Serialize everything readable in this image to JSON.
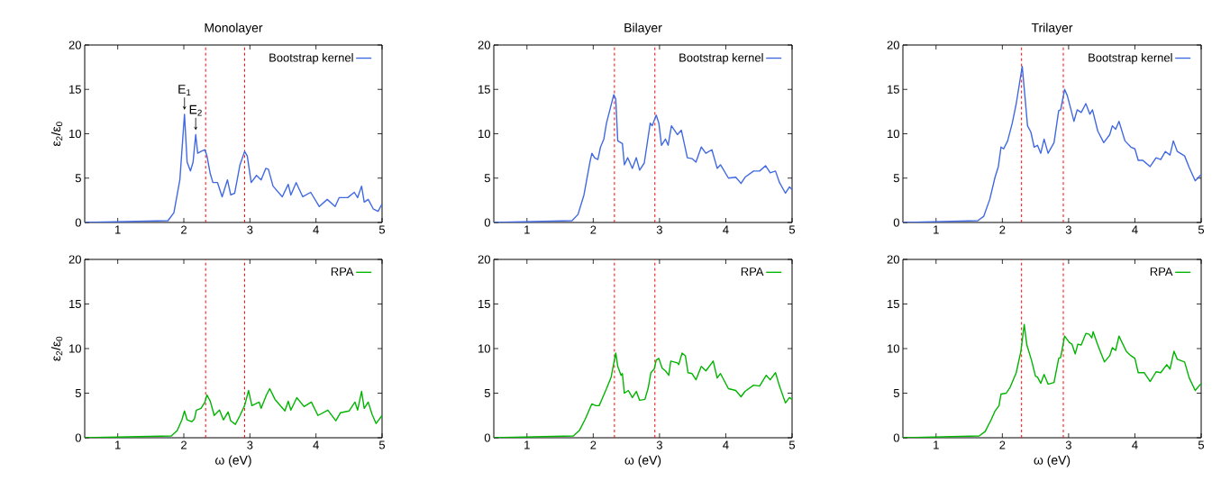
{
  "chart_data": [
    {
      "type": "line",
      "title": "Monolayer",
      "ylabel": "ε$_{2}$/ε$_{0}$",
      "xlim": [
        0.5,
        5
      ],
      "xticks": [
        1,
        2,
        3,
        4,
        5
      ],
      "ylim": [
        0,
        20
      ],
      "yticks": [
        0,
        5,
        10,
        15,
        20
      ],
      "legend": "top right",
      "marker": "none",
      "ref_lines": [
        {
          "axis": "x",
          "value": 2.33,
          "color": "#ff0000",
          "line_style": "dashed"
        },
        {
          "axis": "x",
          "value": 2.92,
          "color": "#ff0000",
          "line_style": "dashed"
        }
      ],
      "annotations": [
        {
          "text": "E$_{1}$",
          "x": 2.01,
          "y": 12.2
        },
        {
          "text": "E$_{2}$",
          "x": 2.18,
          "y": 9.9
        }
      ],
      "series": [
        {
          "name": "Bootstrap kernel",
          "color": "#4169e1",
          "x": [
            0.5,
            1.76,
            1.85,
            1.94,
            2.01,
            2.05,
            2.1,
            2.14,
            2.18,
            2.21,
            2.26,
            2.32,
            2.35,
            2.4,
            2.44,
            2.51,
            2.58,
            2.66,
            2.71,
            2.77,
            2.85,
            2.92,
            2.96,
            3.02,
            3.1,
            3.17,
            3.24,
            3.28,
            3.35,
            3.49,
            3.58,
            3.62,
            3.7,
            3.8,
            3.92,
            4.05,
            4.17,
            4.29,
            4.35,
            4.48,
            4.58,
            4.63,
            4.69,
            4.73,
            4.79,
            4.87,
            4.94,
            5.0
          ],
          "values": [
            0,
            0.2,
            1.1,
            4.8,
            12.2,
            6.8,
            5.8,
            6.8,
            9.9,
            7.8,
            8.0,
            8.2,
            7.5,
            5.5,
            4.5,
            4.5,
            2.9,
            4.8,
            3.1,
            3.3,
            6.5,
            8.0,
            7.5,
            4.5,
            5.3,
            4.8,
            6.1,
            6.0,
            4.1,
            2.9,
            4.3,
            3.1,
            4.5,
            2.9,
            3.4,
            1.8,
            2.6,
            1.8,
            2.8,
            2.8,
            3.4,
            2.8,
            4.1,
            2.3,
            2.6,
            1.5,
            1.25,
            2.1
          ]
        }
      ]
    },
    {
      "type": "line",
      "title": "Bilayer",
      "xlim": [
        0.5,
        5
      ],
      "xticks": [
        1,
        2,
        3,
        4,
        5
      ],
      "ylim": [
        0,
        20
      ],
      "yticks": [
        0,
        5,
        10,
        15,
        20
      ],
      "legend": "top right",
      "marker": "none",
      "ref_lines": [
        {
          "axis": "x",
          "value": 2.32,
          "color": "#ff0000",
          "line_style": "dashed"
        },
        {
          "axis": "x",
          "value": 2.93,
          "color": "#ff0000",
          "line_style": "dashed"
        }
      ],
      "series": [
        {
          "name": "Bootstrap kernel",
          "color": "#4169e1",
          "x": [
            0.5,
            1.68,
            1.77,
            1.86,
            1.95,
            1.98,
            2.02,
            2.07,
            2.11,
            2.16,
            2.2,
            2.31,
            2.34,
            2.37,
            2.44,
            2.47,
            2.52,
            2.59,
            2.65,
            2.7,
            2.77,
            2.86,
            2.89,
            2.95,
            2.99,
            3.03,
            3.09,
            3.13,
            3.18,
            3.27,
            3.33,
            3.42,
            3.49,
            3.55,
            3.63,
            3.7,
            3.79,
            3.87,
            3.92,
            4.04,
            4.15,
            4.23,
            4.29,
            4.42,
            4.51,
            4.6,
            4.67,
            4.75,
            4.81,
            4.9,
            4.96,
            5.0
          ],
          "values": [
            0,
            0.2,
            0.9,
            3.1,
            6.8,
            7.8,
            7.3,
            7.1,
            8.5,
            9.4,
            11.2,
            14.4,
            13.9,
            9.2,
            8.9,
            6.5,
            7.3,
            6.1,
            7.3,
            5.9,
            6.7,
            11.2,
            10.9,
            12.1,
            11.2,
            8.7,
            9.4,
            8.7,
            10.9,
            9.9,
            10.4,
            7.3,
            7.2,
            6.8,
            8.5,
            7.8,
            8.2,
            6.1,
            6.5,
            5.0,
            5.1,
            4.4,
            5.1,
            5.8,
            5.8,
            6.4,
            5.6,
            5.8,
            4.5,
            3.3,
            4.0,
            3.7
          ]
        }
      ]
    },
    {
      "type": "line",
      "title": "Trilayer",
      "xlim": [
        0.5,
        5
      ],
      "xticks": [
        1,
        2,
        3,
        4,
        5
      ],
      "ylim": [
        0,
        20
      ],
      "yticks": [
        0,
        5,
        10,
        15,
        20
      ],
      "legend": "top right",
      "marker": "none",
      "ref_lines": [
        {
          "axis": "x",
          "value": 2.29,
          "color": "#ff0000",
          "line_style": "dashed"
        },
        {
          "axis": "x",
          "value": 2.92,
          "color": "#ff0000",
          "line_style": "dashed"
        }
      ],
      "series": [
        {
          "name": "Bootstrap kernel",
          "color": "#4169e1",
          "x": [
            0.5,
            1.63,
            1.72,
            1.81,
            1.89,
            1.94,
            1.98,
            2.02,
            2.08,
            2.15,
            2.21,
            2.3,
            2.34,
            2.38,
            2.43,
            2.48,
            2.53,
            2.58,
            2.63,
            2.69,
            2.78,
            2.85,
            2.88,
            2.94,
            2.98,
            3.04,
            3.08,
            3.13,
            3.19,
            3.26,
            3.32,
            3.36,
            3.44,
            3.53,
            3.62,
            3.66,
            3.71,
            3.76,
            3.85,
            3.94,
            4.0,
            4.05,
            4.12,
            4.23,
            4.32,
            4.39,
            4.46,
            4.53,
            4.58,
            4.64,
            4.75,
            4.82,
            4.91,
            5.0
          ],
          "values": [
            0,
            0.2,
            0.7,
            2.6,
            5.1,
            6.3,
            8.5,
            8.3,
            9.2,
            11.2,
            13.4,
            17.6,
            14.3,
            10.9,
            10.2,
            8.5,
            8.7,
            7.8,
            9.4,
            7.8,
            9.0,
            12.6,
            12.7,
            15.0,
            14.3,
            12.6,
            11.4,
            12.7,
            12.4,
            13.4,
            12.2,
            12.7,
            10.3,
            9.0,
            9.9,
            10.9,
            10.5,
            11.4,
            9.2,
            8.5,
            8.3,
            7.0,
            7.0,
            6.3,
            7.3,
            7.1,
            8.0,
            7.6,
            9.2,
            8.0,
            7.5,
            6.2,
            4.7,
            5.4
          ]
        }
      ]
    },
    {
      "type": "line",
      "xlabel": "ω (eV)",
      "ylabel": "ε$_{2}$/ε$_{0}$",
      "xlim": [
        0.5,
        5
      ],
      "xticks": [
        1,
        2,
        3,
        4,
        5
      ],
      "ylim": [
        0,
        20
      ],
      "yticks": [
        0,
        5,
        10,
        15,
        20
      ],
      "legend": "top right",
      "marker": "none",
      "ref_lines": [
        {
          "axis": "x",
          "value": 2.33,
          "color": "#ff0000",
          "line_style": "dashed"
        },
        {
          "axis": "x",
          "value": 2.92,
          "color": "#ff0000",
          "line_style": "dashed"
        }
      ],
      "series": [
        {
          "name": "RPA",
          "color": "#00b400",
          "x": [
            0.5,
            1.81,
            1.9,
            1.97,
            2.01,
            2.05,
            2.12,
            2.16,
            2.19,
            2.26,
            2.32,
            2.35,
            2.4,
            2.46,
            2.54,
            2.6,
            2.67,
            2.71,
            2.78,
            2.85,
            2.92,
            2.98,
            3.03,
            3.14,
            3.17,
            3.25,
            3.3,
            3.38,
            3.53,
            3.58,
            3.62,
            3.71,
            3.82,
            3.93,
            4.03,
            4.18,
            4.3,
            4.37,
            4.5,
            4.59,
            4.63,
            4.69,
            4.73,
            4.79,
            4.85,
            4.91,
            5.0
          ],
          "values": [
            0,
            0.2,
            0.8,
            2.0,
            3.0,
            2.0,
            1.8,
            2.1,
            3.1,
            3.3,
            4.0,
            4.8,
            4.1,
            2.5,
            3.1,
            2.0,
            2.9,
            1.9,
            1.5,
            2.5,
            3.6,
            5.3,
            3.6,
            4.0,
            3.3,
            4.8,
            5.5,
            4.3,
            3.0,
            4.1,
            3.1,
            4.5,
            3.5,
            4.0,
            2.5,
            3.1,
            1.9,
            2.8,
            3.0,
            4.0,
            3.1,
            5.2,
            3.3,
            4.0,
            2.6,
            1.6,
            2.5
          ]
        }
      ]
    },
    {
      "type": "line",
      "xlabel": "ω (eV)",
      "xlim": [
        0.5,
        5
      ],
      "xticks": [
        1,
        2,
        3,
        4,
        5
      ],
      "ylim": [
        0,
        20
      ],
      "yticks": [
        0,
        5,
        10,
        15,
        20
      ],
      "legend": "top right",
      "marker": "none",
      "ref_lines": [
        {
          "axis": "x",
          "value": 2.32,
          "color": "#ff0000",
          "line_style": "dashed"
        },
        {
          "axis": "x",
          "value": 2.93,
          "color": "#ff0000",
          "line_style": "dashed"
        }
      ],
      "series": [
        {
          "name": "RPA",
          "color": "#00b400",
          "x": [
            0.5,
            1.7,
            1.79,
            1.88,
            1.95,
            1.98,
            2.04,
            2.09,
            2.13,
            2.2,
            2.27,
            2.34,
            2.37,
            2.42,
            2.44,
            2.47,
            2.53,
            2.59,
            2.65,
            2.7,
            2.78,
            2.83,
            2.87,
            2.92,
            2.95,
            2.99,
            3.04,
            3.09,
            3.14,
            3.17,
            3.27,
            3.29,
            3.34,
            3.39,
            3.43,
            3.49,
            3.55,
            3.63,
            3.7,
            3.81,
            3.87,
            3.92,
            4.04,
            4.15,
            4.23,
            4.29,
            4.42,
            4.51,
            4.61,
            4.67,
            4.75,
            4.81,
            4.9,
            4.96,
            5.0
          ],
          "values": [
            0,
            0.2,
            0.8,
            2.1,
            3.3,
            3.8,
            3.6,
            3.6,
            4.3,
            5.5,
            6.8,
            9.5,
            8.0,
            7.0,
            7.2,
            5.0,
            5.3,
            4.5,
            5.2,
            4.2,
            4.3,
            5.6,
            7.3,
            7.7,
            8.7,
            8.9,
            7.8,
            7.5,
            7.0,
            8.6,
            8.4,
            8.2,
            9.5,
            9.2,
            7.3,
            7.2,
            6.5,
            8.0,
            7.5,
            8.6,
            6.7,
            7.2,
            5.5,
            5.3,
            4.6,
            5.2,
            5.9,
            5.8,
            7.0,
            6.5,
            7.3,
            5.8,
            3.9,
            4.5,
            4.3
          ]
        }
      ]
    },
    {
      "type": "line",
      "xlabel": "ω (eV)",
      "xlim": [
        0.5,
        5
      ],
      "xticks": [
        1,
        2,
        3,
        4,
        5
      ],
      "ylim": [
        0,
        20
      ],
      "yticks": [
        0,
        5,
        10,
        15,
        20
      ],
      "legend": "top right",
      "marker": "none",
      "ref_lines": [
        {
          "axis": "x",
          "value": 2.29,
          "color": "#ff0000",
          "line_style": "dashed"
        },
        {
          "axis": "x",
          "value": 2.92,
          "color": "#ff0000",
          "line_style": "dashed"
        }
      ],
      "series": [
        {
          "name": "RPA",
          "color": "#00b400",
          "x": [
            0.5,
            1.65,
            1.74,
            1.83,
            1.89,
            1.95,
            1.98,
            2.06,
            2.12,
            2.21,
            2.28,
            2.33,
            2.37,
            2.44,
            2.5,
            2.53,
            2.58,
            2.63,
            2.69,
            2.78,
            2.85,
            2.88,
            2.94,
            3.01,
            3.05,
            3.1,
            3.14,
            3.19,
            3.26,
            3.31,
            3.35,
            3.37,
            3.44,
            3.54,
            3.62,
            3.66,
            3.71,
            3.76,
            3.87,
            3.94,
            4.0,
            4.05,
            4.14,
            4.23,
            4.32,
            4.39,
            4.48,
            4.53,
            4.59,
            4.64,
            4.75,
            4.82,
            4.91,
            5.0
          ],
          "values": [
            0,
            0.2,
            0.7,
            2.0,
            3.0,
            3.6,
            4.9,
            5.0,
            5.7,
            7.3,
            9.7,
            12.7,
            10.4,
            8.7,
            6.9,
            6.8,
            6.1,
            7.1,
            6.0,
            6.2,
            8.9,
            9.0,
            11.4,
            10.7,
            10.5,
            9.4,
            10.5,
            10.4,
            11.7,
            11.6,
            11.2,
            11.9,
            10.4,
            8.5,
            9.2,
            10.1,
            9.8,
            11.4,
            9.7,
            9.2,
            8.9,
            7.3,
            7.3,
            6.3,
            7.4,
            7.3,
            8.2,
            7.7,
            9.7,
            8.8,
            8.5,
            6.7,
            5.3,
            6.1
          ]
        }
      ]
    }
  ]
}
